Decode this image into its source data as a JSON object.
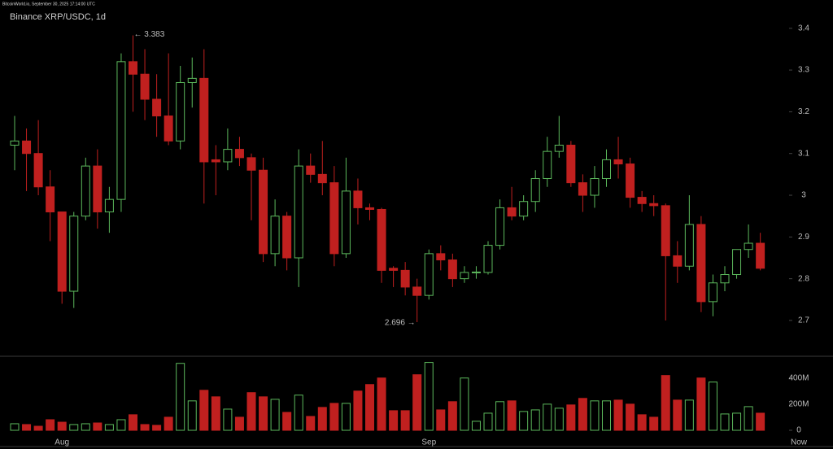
{
  "chart_data": {
    "type": "candlestick",
    "watermark": "BitcoinWorld.io, September 30, 2025 17:14:00 UTC",
    "title": "Binance XRP/USDC, 1d",
    "categories": [
      null,
      null,
      null,
      null,
      "Aug",
      null,
      null,
      null,
      null,
      null,
      null,
      null,
      null,
      null,
      null,
      null,
      null,
      null,
      null,
      null,
      null,
      null,
      null,
      null,
      null,
      null,
      null,
      null,
      null,
      null,
      null,
      null,
      null,
      null,
      null,
      "Sep",
      null,
      null,
      null,
      null,
      null,
      null,
      null,
      null,
      null,
      null,
      null,
      null,
      null,
      null,
      null,
      null,
      null,
      null,
      null,
      null,
      null,
      null,
      null,
      null,
      null,
      null,
      null,
      null
    ],
    "x_end_label": "Now",
    "open": [
      3.12,
      3.13,
      3.1,
      3.02,
      2.96,
      2.77,
      2.95,
      3.07,
      2.96,
      2.99,
      3.32,
      3.29,
      3.23,
      3.19,
      3.13,
      3.27,
      3.28,
      3.085,
      3.08,
      3.11,
      3.09,
      3.06,
      2.86,
      2.95,
      2.85,
      3.07,
      3.05,
      3.03,
      2.86,
      3.01,
      2.97,
      2.966,
      2.825,
      2.82,
      2.78,
      2.76,
      2.86,
      2.845,
      2.8,
      2.815,
      2.815,
      2.88,
      2.97,
      2.95,
      2.985,
      3.04,
      3.105,
      3.12,
      3.03,
      3.0,
      3.04,
      3.085,
      3.075,
      2.995,
      2.98,
      2.975,
      2.855,
      2.83,
      2.93,
      2.745,
      2.79,
      2.81,
      2.87,
      2.885
    ],
    "high": [
      3.19,
      3.16,
      3.18,
      3.06,
      2.96,
      2.96,
      3.09,
      3.11,
      3.02,
      3.34,
      3.383,
      3.35,
      3.29,
      3.34,
      3.31,
      3.33,
      3.35,
      3.12,
      3.16,
      3.14,
      3.1,
      3.09,
      2.99,
      2.96,
      3.11,
      3.1,
      3.13,
      3.07,
      3.09,
      3.04,
      2.98,
      2.97,
      2.83,
      2.84,
      2.8,
      2.87,
      2.88,
      2.86,
      2.83,
      2.83,
      2.89,
      2.99,
      3.02,
      3.0,
      3.06,
      3.14,
      3.19,
      3.13,
      3.05,
      3.07,
      3.11,
      3.14,
      3.09,
      3.01,
      3.0,
      2.98,
      2.89,
      3.0,
      2.95,
      2.81,
      2.83,
      2.87,
      2.93,
      2.91
    ],
    "low": [
      3.06,
      3.01,
      3.0,
      2.89,
      2.74,
      2.73,
      2.94,
      2.92,
      2.91,
      2.96,
      3.2,
      3.18,
      3.14,
      3.12,
      3.11,
      3.21,
      2.98,
      3.0,
      3.06,
      3.07,
      2.94,
      2.84,
      2.83,
      2.82,
      2.78,
      3.03,
      3.0,
      2.83,
      2.85,
      2.93,
      2.94,
      2.79,
      2.78,
      2.76,
      2.696,
      2.75,
      2.82,
      2.78,
      2.79,
      2.8,
      2.81,
      2.87,
      2.94,
      2.94,
      2.96,
      3.02,
      3.09,
      3.02,
      2.96,
      2.97,
      3.02,
      3.04,
      2.97,
      2.96,
      2.95,
      2.7,
      2.79,
      2.82,
      2.72,
      2.71,
      2.77,
      2.8,
      2.85,
      2.82
    ],
    "close": [
      3.13,
      3.1,
      3.02,
      2.96,
      2.77,
      2.95,
      3.07,
      2.96,
      2.99,
      3.32,
      3.29,
      3.23,
      3.19,
      3.13,
      3.27,
      3.28,
      3.08,
      3.08,
      3.11,
      3.09,
      3.06,
      2.86,
      2.95,
      2.85,
      3.07,
      3.05,
      3.03,
      2.86,
      3.01,
      2.97,
      2.966,
      2.82,
      2.82,
      2.78,
      2.76,
      2.86,
      2.845,
      2.8,
      2.815,
      2.816,
      2.88,
      2.97,
      2.95,
      2.985,
      3.04,
      3.105,
      3.12,
      3.03,
      3.0,
      3.04,
      3.085,
      3.075,
      2.995,
      2.98,
      2.975,
      2.855,
      2.83,
      2.93,
      2.745,
      2.79,
      2.81,
      2.87,
      2.885,
      2.825
    ],
    "volume": [
      50000000,
      44000000,
      31000000,
      81000000,
      62000000,
      44000000,
      50000000,
      56000000,
      44000000,
      81000000,
      119000000,
      44000000,
      38000000,
      100000000,
      512000000,
      225000000,
      306000000,
      256000000,
      162000000,
      100000000,
      288000000,
      256000000,
      237000000,
      137000000,
      269000000,
      106000000,
      175000000,
      206000000,
      206000000,
      300000000,
      350000000,
      400000000,
      150000000,
      150000000,
      425000000,
      519000000,
      156000000,
      219000000,
      400000000,
      69000000,
      131000000,
      219000000,
      225000000,
      144000000,
      156000000,
      200000000,
      169000000,
      194000000,
      244000000,
      225000000,
      225000000,
      231000000,
      200000000,
      119000000,
      100000000,
      419000000,
      231000000,
      231000000,
      400000000,
      369000000,
      125000000,
      131000000,
      181000000,
      131000000
    ],
    "up_color": "#5cb85c",
    "down_color": "#c0201f",
    "ylim": [
      2.62,
      3.46
    ],
    "yticks": [
      2.7,
      2.8,
      2.9,
      3,
      3.1,
      3.2,
      3.3,
      3.4
    ],
    "volume_ylim": [
      0,
      560000000
    ],
    "volume_yticks": [
      0,
      {
        "value": 200000000,
        "label": "200M"
      },
      {
        "value": 400000000,
        "label": "400M"
      }
    ],
    "annotations": [
      "← 3.383",
      "2.696 →"
    ]
  }
}
